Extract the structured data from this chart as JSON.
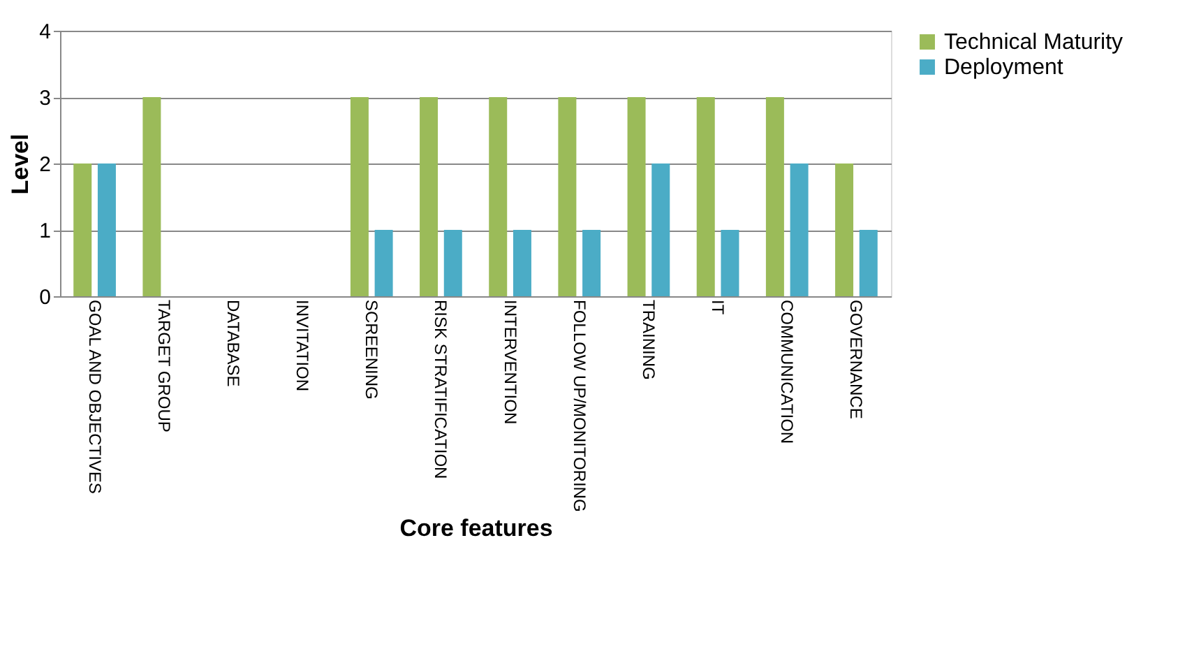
{
  "chart_data": {
    "type": "bar",
    "xlabel": "Core features",
    "ylabel": "Level",
    "categories": [
      "GOAL AND OBJECTIVES",
      "TARGET GROUP",
      "DATABASE",
      "INVITATION",
      "SCREENING",
      "RISK STRATIFICATION",
      "INTERVENTION",
      "FOLLOW UP/MONITORING",
      "TRAINING",
      "IT",
      "COMMUNICATION",
      "GOVERNANCE"
    ],
    "series": [
      {
        "name": "Technical Maturity",
        "color": "#9bbb59",
        "values": [
          2,
          3,
          0,
          0,
          3,
          3,
          3,
          3,
          3,
          3,
          3,
          2
        ]
      },
      {
        "name": "Deployment",
        "color": "#4bacc6",
        "values": [
          2,
          0,
          0,
          0,
          1,
          1,
          1,
          1,
          2,
          1,
          2,
          1
        ]
      }
    ],
    "ylim": [
      0,
      4
    ],
    "yticks": [
      0,
      1,
      2,
      3,
      4
    ],
    "grid": "y",
    "legend": "right"
  }
}
